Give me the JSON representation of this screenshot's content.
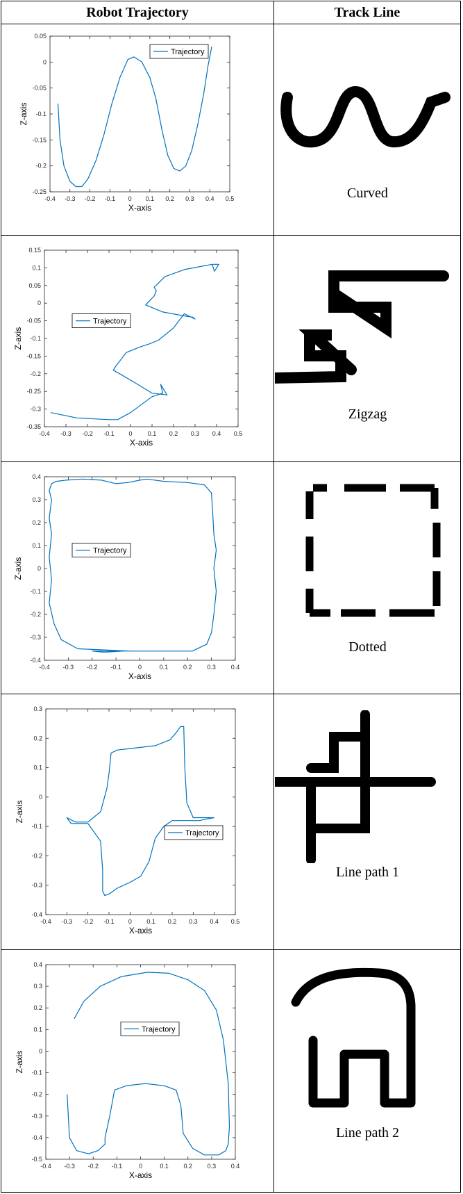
{
  "headers": {
    "left": "Robot Trajectory",
    "right": "Track Line"
  },
  "colors": {
    "trajectory": "#0072BD",
    "track": "#000000",
    "axis": "#262626"
  },
  "rows": [
    {
      "track_label": "Curved",
      "track_icon": "curved-track-icon"
    },
    {
      "track_label": "Zigzag",
      "track_icon": "zigzag-track-icon"
    },
    {
      "track_label": "Dotted",
      "track_icon": "dotted-track-icon"
    },
    {
      "track_label": "Line path 1",
      "track_icon": "line-path-1-track-icon"
    },
    {
      "track_label": "Line path 2",
      "track_icon": "line-path-2-track-icon"
    }
  ],
  "chart_data": [
    {
      "type": "line",
      "xlabel": "X-axis",
      "ylabel": "Z-axis",
      "xlim": [
        -0.4,
        0.5
      ],
      "ylim": [
        -0.25,
        0.05
      ],
      "xticks": [
        "-0.4",
        "-0.3",
        "-0.2",
        "-0.1",
        "0",
        "0.1",
        "0.2",
        "0.3",
        "0.4",
        "0.5"
      ],
      "yticks": [
        "0.05",
        "0",
        "-0.05",
        "-0.1",
        "-0.15",
        "-0.2",
        "-0.25"
      ],
      "legend": "top-right",
      "series": [
        {
          "name": "Trajectory",
          "x": [
            -0.36,
            -0.35,
            -0.33,
            -0.3,
            -0.27,
            -0.24,
            -0.21,
            -0.17,
            -0.13,
            -0.09,
            -0.05,
            -0.01,
            0.02,
            0.06,
            0.1,
            0.13,
            0.16,
            0.19,
            0.22,
            0.25,
            0.28,
            0.31,
            0.34,
            0.37,
            0.39,
            0.41
          ],
          "y": [
            -0.08,
            -0.15,
            -0.2,
            -0.23,
            -0.24,
            -0.24,
            -0.225,
            -0.19,
            -0.14,
            -0.08,
            -0.03,
            0.005,
            0.01,
            0.0,
            -0.03,
            -0.07,
            -0.13,
            -0.18,
            -0.205,
            -0.21,
            -0.2,
            -0.17,
            -0.12,
            -0.06,
            -0.01,
            0.03
          ]
        }
      ]
    },
    {
      "type": "line",
      "xlabel": "X-axis",
      "ylabel": "Z-axis",
      "xlim": [
        -0.4,
        0.5
      ],
      "ylim": [
        -0.35,
        0.15
      ],
      "xticks": [
        "-0.4",
        "-0.3",
        "-0.2",
        "-0.1",
        "0",
        "0.1",
        "0.2",
        "0.3",
        "0.4",
        "0.5"
      ],
      "yticks": [
        "0.15",
        "0.1",
        "0.05",
        "0",
        "-0.05",
        "-0.1",
        "-0.15",
        "-0.2",
        "-0.25",
        "-0.3",
        "-0.35"
      ],
      "legend": "center-left",
      "series": [
        {
          "name": "Trajectory",
          "x": [
            -0.37,
            -0.25,
            -0.1,
            -0.06,
            0.0,
            0.1,
            0.15,
            0.14,
            0.17,
            0.1,
            0.02,
            -0.05,
            -0.08,
            -0.07,
            -0.02,
            0.04,
            0.09,
            0.13,
            0.2,
            0.25,
            0.3,
            0.29,
            0.24,
            0.15,
            0.07,
            0.11,
            0.12,
            0.11,
            0.16,
            0.25,
            0.38,
            0.39,
            0.41,
            0.38
          ],
          "y": [
            -0.31,
            -0.325,
            -0.33,
            -0.33,
            -0.31,
            -0.265,
            -0.255,
            -0.23,
            -0.26,
            -0.255,
            -0.225,
            -0.2,
            -0.19,
            -0.18,
            -0.14,
            -0.125,
            -0.115,
            -0.105,
            -0.07,
            -0.03,
            -0.045,
            -0.04,
            -0.035,
            -0.025,
            -0.005,
            0.02,
            0.035,
            0.045,
            0.075,
            0.095,
            0.11,
            0.09,
            0.11,
            0.11
          ]
        }
      ]
    },
    {
      "type": "line",
      "xlabel": "X-axis",
      "ylabel": "Z-axis",
      "xlim": [
        -0.4,
        0.4
      ],
      "ylim": [
        -0.4,
        0.4
      ],
      "xticks": [
        "-0.4",
        "-0.3",
        "-0.2",
        "-0.1",
        "0",
        "0.1",
        "0.2",
        "0.3",
        "0.4"
      ],
      "yticks": [
        "0.4",
        "0.3",
        "0.2",
        "0.1",
        "0",
        "-0.1",
        "-0.2",
        "-0.3",
        "-0.4"
      ],
      "legend": "center-left",
      "series": [
        {
          "name": "Trajectory",
          "x": [
            -0.04,
            -0.15,
            -0.26,
            -0.33,
            -0.36,
            -0.38,
            -0.37,
            -0.38,
            -0.37,
            -0.38,
            -0.37,
            -0.38,
            -0.37,
            -0.35,
            -0.31,
            -0.24,
            -0.16,
            -0.1,
            -0.05,
            0.0,
            0.03,
            0.1,
            0.2,
            0.27,
            0.3,
            0.305,
            0.31,
            0.32,
            0.31,
            0.32,
            0.31,
            0.3,
            0.28,
            0.22,
            0.1,
            0.0,
            -0.07,
            -0.15,
            -0.2,
            -0.04
          ],
          "y": [
            -0.36,
            -0.355,
            -0.35,
            -0.31,
            -0.24,
            -0.15,
            -0.05,
            0.05,
            0.15,
            0.22,
            0.3,
            0.34,
            0.37,
            0.38,
            0.385,
            0.39,
            0.385,
            0.37,
            0.375,
            0.385,
            0.39,
            0.38,
            0.375,
            0.365,
            0.33,
            0.25,
            0.15,
            0.08,
            0.0,
            -0.1,
            -0.2,
            -0.28,
            -0.33,
            -0.36,
            -0.36,
            -0.36,
            -0.36,
            -0.365,
            -0.36,
            -0.36
          ]
        }
      ]
    },
    {
      "type": "line",
      "xlabel": "X-axis",
      "ylabel": "Z-axis",
      "xlim": [
        -0.4,
        0.5
      ],
      "ylim": [
        -0.4,
        0.3
      ],
      "xticks": [
        "-0.4",
        "-0.3",
        "-0.2",
        "-0.1",
        "0",
        "0.1",
        "0.2",
        "0.3",
        "0.4",
        "0.5"
      ],
      "yticks": [
        "0.3",
        "0.2",
        "0.1",
        "0",
        "-0.1",
        "-0.2",
        "-0.3",
        "-0.4"
      ],
      "legend": "bottom-right",
      "series": [
        {
          "name": "Trajectory",
          "x": [
            0.4,
            0.3,
            0.27,
            0.26,
            0.255,
            0.24,
            0.22,
            0.19,
            0.12,
            0.0,
            -0.06,
            -0.09,
            -0.1,
            -0.11,
            -0.14,
            -0.2,
            -0.26,
            -0.3,
            -0.28,
            -0.2,
            -0.14,
            -0.13,
            -0.13,
            -0.12,
            -0.1,
            -0.06,
            0.0,
            0.05,
            0.09,
            0.12,
            0.16,
            0.2,
            0.25,
            0.29,
            0.33,
            0.36,
            0.4
          ],
          "y": [
            -0.07,
            -0.07,
            -0.02,
            0.1,
            0.24,
            0.24,
            0.22,
            0.195,
            0.175,
            0.165,
            0.16,
            0.15,
            0.08,
            0.03,
            -0.05,
            -0.085,
            -0.085,
            -0.07,
            -0.09,
            -0.09,
            -0.15,
            -0.25,
            -0.32,
            -0.335,
            -0.33,
            -0.31,
            -0.29,
            -0.27,
            -0.22,
            -0.14,
            -0.1,
            -0.08,
            -0.08,
            -0.08,
            -0.08,
            -0.075,
            -0.07
          ]
        }
      ]
    },
    {
      "type": "line",
      "xlabel": "X-axis",
      "ylabel": "Z-axis",
      "xlim": [
        -0.4,
        0.4
      ],
      "ylim": [
        -0.5,
        0.4
      ],
      "xticks": [
        "-0.4",
        "-0.3",
        "-0.2",
        "-0.1",
        "0",
        "0.1",
        "0.2",
        "0.3",
        "0.4"
      ],
      "yticks": [
        "0.4",
        "0.3",
        "0.2",
        "0.1",
        "0",
        "-0.1",
        "-0.2",
        "-0.3",
        "-0.4",
        "-0.5"
      ],
      "legend": "center",
      "series": [
        {
          "name": "Trajectory",
          "x": [
            -0.28,
            -0.24,
            -0.17,
            -0.08,
            0.03,
            0.12,
            0.2,
            0.27,
            0.32,
            0.35,
            0.37,
            0.375,
            0.37,
            0.36,
            0.33,
            0.27,
            0.22,
            0.18,
            0.17,
            0.15,
            0.1,
            0.02,
            -0.06,
            -0.11,
            -0.13,
            -0.15,
            -0.15,
            -0.18,
            -0.22,
            -0.27,
            -0.3,
            -0.31
          ],
          "y": [
            0.15,
            0.23,
            0.3,
            0.345,
            0.365,
            0.36,
            0.33,
            0.28,
            0.19,
            0.05,
            -0.15,
            -0.35,
            -0.43,
            -0.46,
            -0.48,
            -0.48,
            -0.45,
            -0.38,
            -0.25,
            -0.18,
            -0.16,
            -0.15,
            -0.16,
            -0.18,
            -0.3,
            -0.4,
            -0.43,
            -0.46,
            -0.475,
            -0.46,
            -0.4,
            -0.2
          ]
        }
      ]
    }
  ]
}
